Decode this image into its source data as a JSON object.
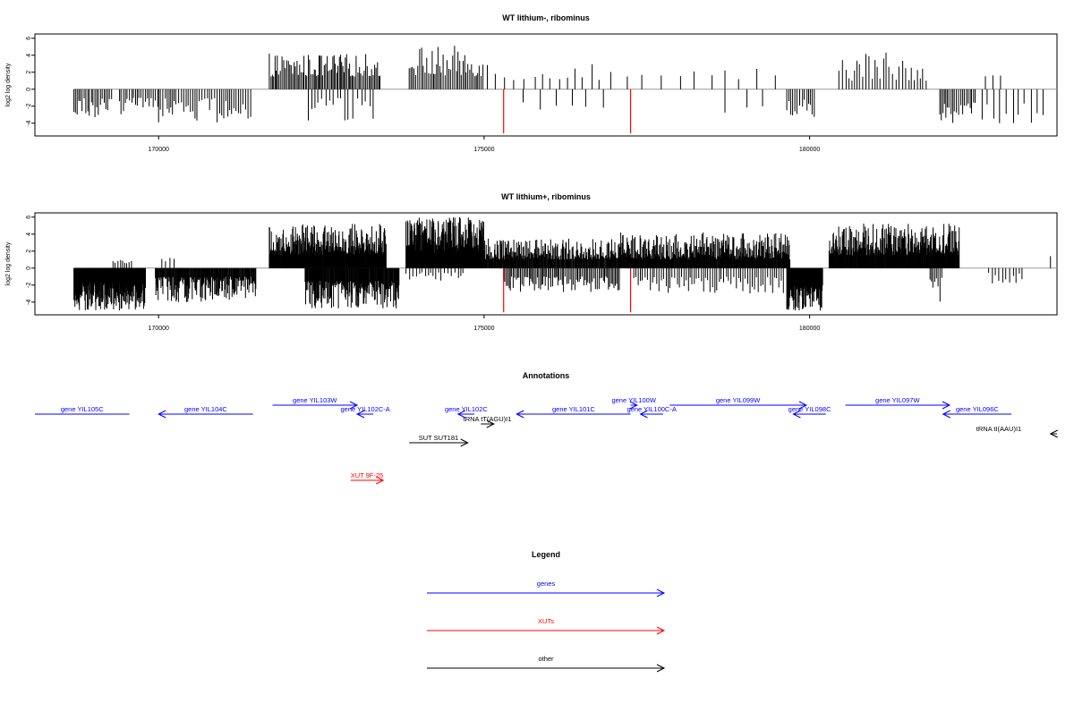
{
  "chart_data": [
    {
      "type": "bar",
      "title": "WT lithium-, ribominus",
      "ylabel": "log2 log density",
      "ylim": [
        -5.5,
        6.5
      ],
      "yticks": [
        -4,
        -2,
        0,
        2,
        4,
        6
      ],
      "xlim": [
        168100,
        183800
      ],
      "xticks": [
        170000,
        175000,
        180000
      ],
      "highlight_x": [
        175300,
        177250
      ],
      "highlight_color": "#ff0000",
      "bar_color": "#000000",
      "baseline_color": "#999999",
      "baseline_range": [
        168700,
        183800
      ],
      "blocks": [
        {
          "range": [
            168700,
            169300
          ],
          "sign": -1,
          "min": 1,
          "max": 3.8,
          "step": 28
        },
        {
          "range": [
            169400,
            170000
          ],
          "sign": -1,
          "min": 1,
          "max": 3.0,
          "step": 30
        },
        {
          "range": [
            170000,
            171450
          ],
          "sign": -1,
          "min": 1,
          "max": 3.9,
          "step": 35
        },
        {
          "range": [
            171700,
            173400
          ],
          "sign": 1,
          "min": 1.5,
          "max": 4.2,
          "step": 22
        },
        {
          "range": [
            172300,
            173300
          ],
          "sign": -1,
          "min": 1,
          "max": 4.0,
          "step": 60
        },
        {
          "range": [
            173850,
            175000
          ],
          "sign": 1,
          "min": 1.5,
          "max": 5.1,
          "step": 25
        },
        {
          "range": [
            175050,
            177000
          ],
          "sign": 1,
          "min": 1.0,
          "max": 3.5,
          "step": 140
        },
        {
          "range": [
            175600,
            177000
          ],
          "sign": -1,
          "min": 1.5,
          "max": 2.5,
          "step": 220
        },
        {
          "range": [
            177200,
            178600
          ],
          "sign": 1,
          "min": 1.5,
          "max": 2.4,
          "step": 230
        },
        {
          "range": [
            178700,
            179500
          ],
          "sign": -1,
          "min": 2,
          "max": 3.2,
          "step": 260
        },
        {
          "range": [
            178700,
            179500
          ],
          "sign": 1,
          "min": 1,
          "max": 3.2,
          "step": 240
        },
        {
          "range": [
            179650,
            180100
          ],
          "sign": -1,
          "min": 1,
          "max": 3.3,
          "step": 35
        },
        {
          "range": [
            180450,
            181800
          ],
          "sign": 1,
          "min": 1,
          "max": 4.7,
          "step": 45
        },
        {
          "range": [
            182000,
            182550
          ],
          "sign": -1,
          "min": 1.5,
          "max": 4.3,
          "step": 28
        },
        {
          "range": [
            182650,
            183600
          ],
          "sign": -1,
          "min": 1.5,
          "max": 4.0,
          "step": 90
        },
        {
          "range": [
            182700,
            183000
          ],
          "sign": 1,
          "min": 1,
          "max": 2.0,
          "step": 90
        }
      ]
    },
    {
      "type": "bar",
      "title": "WT lithium+, ribominus",
      "ylabel": "log2 log density",
      "ylim": [
        -5.5,
        6.5
      ],
      "yticks": [
        -4,
        -2,
        0,
        2,
        4,
        6
      ],
      "xlim": [
        168100,
        183800
      ],
      "xticks": [
        170000,
        175000,
        180000
      ],
      "highlight_x": [
        175300,
        177250
      ],
      "highlight_color": "#ff0000",
      "bar_color": "#000000",
      "baseline_color": "#999999",
      "baseline_range": [
        168700,
        183800
      ],
      "blocks": [
        {
          "range": [
            168700,
            169800
          ],
          "sign": -1,
          "min": 1.5,
          "max": 5.0,
          "step": 6
        },
        {
          "range": [
            169300,
            169600
          ],
          "sign": 1,
          "min": 0.5,
          "max": 1.0,
          "step": 40
        },
        {
          "range": [
            169950,
            171500
          ],
          "sign": -1,
          "min": 1,
          "max": 4.0,
          "step": 10
        },
        {
          "range": [
            170050,
            170250
          ],
          "sign": 1,
          "min": 0.8,
          "max": 1.5,
          "step": 60
        },
        {
          "range": [
            171700,
            173500
          ],
          "sign": 1,
          "min": 1.5,
          "max": 5.2,
          "step": 7
        },
        {
          "range": [
            172250,
            173700
          ],
          "sign": -1,
          "min": 1.5,
          "max": 4.8,
          "step": 9
        },
        {
          "range": [
            173800,
            175000
          ],
          "sign": 1,
          "min": 1.5,
          "max": 6.0,
          "step": 4
        },
        {
          "range": [
            173800,
            174700
          ],
          "sign": -1,
          "min": 0.5,
          "max": 1.5,
          "step": 45
        },
        {
          "range": [
            175000,
            177100
          ],
          "sign": 1,
          "min": 1,
          "max": 3.5,
          "step": 10
        },
        {
          "range": [
            175300,
            177100
          ],
          "sign": -1,
          "min": 1,
          "max": 3.0,
          "step": 22
        },
        {
          "range": [
            177100,
            179700
          ],
          "sign": 1,
          "min": 1,
          "max": 4.2,
          "step": 9
        },
        {
          "range": [
            177300,
            179600
          ],
          "sign": -1,
          "min": 1,
          "max": 3.0,
          "step": 35
        },
        {
          "range": [
            179650,
            180200
          ],
          "sign": -1,
          "min": 2,
          "max": 5.0,
          "step": 6
        },
        {
          "range": [
            180300,
            182300
          ],
          "sign": 1,
          "min": 1.5,
          "max": 5.3,
          "step": 8
        },
        {
          "range": [
            181850,
            182050
          ],
          "sign": -1,
          "min": 1,
          "max": 4.1,
          "step": 25
        },
        {
          "range": [
            182750,
            183300
          ],
          "sign": -1,
          "min": 0.5,
          "max": 1.8,
          "step": 50
        },
        {
          "range": [
            183700,
            183700
          ],
          "sign": 1,
          "min": 1.4,
          "max": 1.4,
          "step": 50
        }
      ]
    }
  ],
  "annotations": {
    "title": "Annotations",
    "items": [
      {
        "label": "gene YIL105C",
        "color": "#0000ff",
        "from": 168100,
        "to": 169550,
        "dir": "none"
      },
      {
        "label": "gene YIL104C",
        "color": "#0000ff",
        "from": 171450,
        "to": 170000,
        "dir": "left"
      },
      {
        "label": "gene YIL103W",
        "color": "#0000ff",
        "from": 171750,
        "to": 173050,
        "dir": "right"
      },
      {
        "label": "gene YIL102C-A",
        "color": "#0000ff",
        "from": 173300,
        "to": 173050,
        "dir": "left"
      },
      {
        "label": "gene YIL102C",
        "color": "#0000ff",
        "from": 174850,
        "to": 174600,
        "dir": "left"
      },
      {
        "label": "tRNA tT(AGU)I1",
        "color": "#000000",
        "from": 174950,
        "to": 175150,
        "dir": "right"
      },
      {
        "label": "gene YIL101C",
        "color": "#0000ff",
        "from": 177250,
        "to": 175500,
        "dir": "left"
      },
      {
        "label": "gene YIL100W",
        "color": "#0000ff",
        "from": 177250,
        "to": 177350,
        "dir": "right"
      },
      {
        "label": "gene YIL100C-A",
        "color": "#0000ff",
        "from": 177750,
        "to": 177400,
        "dir": "left"
      },
      {
        "label": "gene YIL099W",
        "color": "#0000ff",
        "from": 177850,
        "to": 179950,
        "dir": "right"
      },
      {
        "label": "gene YIL098C",
        "color": "#0000ff",
        "from": 180250,
        "to": 179750,
        "dir": "left"
      },
      {
        "label": "gene YIL097W",
        "color": "#0000ff",
        "from": 180550,
        "to": 182150,
        "dir": "right"
      },
      {
        "label": "gene YIL096C",
        "color": "#0000ff",
        "from": 183100,
        "to": 182050,
        "dir": "left"
      },
      {
        "label": "tRNA tI(AAU)I1",
        "color": "#000000",
        "from": 183800,
        "to": 183700,
        "dir": "left"
      },
      {
        "label": "SUT SUT181",
        "color": "#000000",
        "from": 173850,
        "to": 174750,
        "dir": "right"
      },
      {
        "label": "XUT 9F-25",
        "color": "#ff0000",
        "from": 172950,
        "to": 173450,
        "dir": "right"
      }
    ]
  },
  "legend": {
    "title": "Legend",
    "items": [
      {
        "label": "genes",
        "color": "#0000ff"
      },
      {
        "label": "XUTs",
        "color": "#ff0000"
      },
      {
        "label": "other",
        "color": "#000000"
      }
    ]
  }
}
